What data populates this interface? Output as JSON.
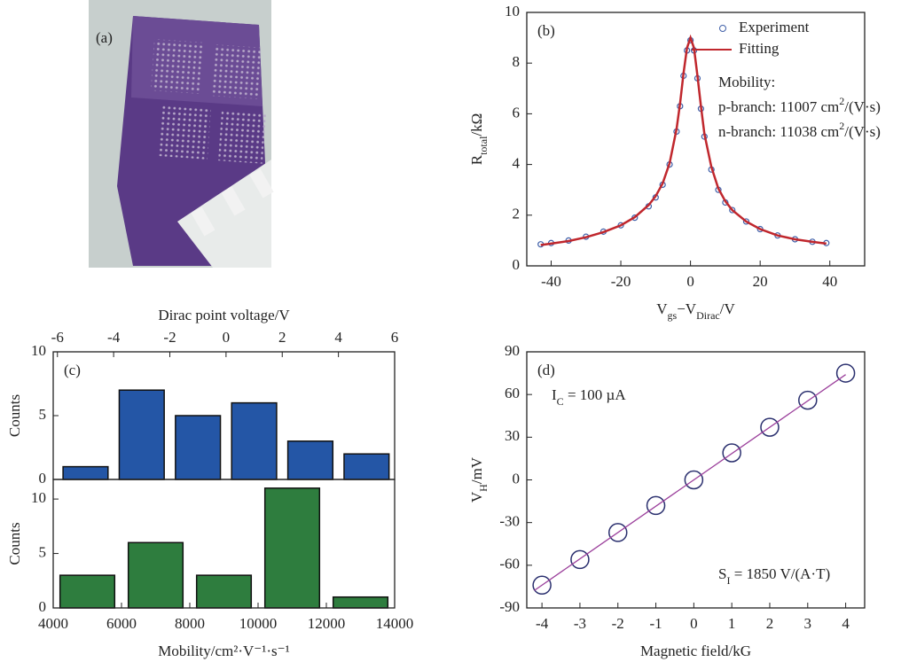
{
  "chart_data": [
    {
      "type": "image",
      "label": "(a)"
    },
    {
      "type": "line",
      "label": "(b)",
      "xlabel": [
        "V",
        "gs",
        "−V",
        "Dirac",
        "/V"
      ],
      "ylabel": [
        "R",
        "total",
        "/kΩ"
      ],
      "xlim": [
        -47,
        50
      ],
      "ylim": [
        0,
        10
      ],
      "xticks": [
        -40,
        -20,
        0,
        20,
        40
      ],
      "yticks": [
        0,
        2,
        4,
        6,
        8,
        10
      ],
      "x": [
        -43,
        -40,
        -35,
        -30,
        -25,
        -20,
        -16,
        -12,
        -10,
        -8,
        -6,
        -4,
        -3,
        -2,
        -1,
        0,
        1,
        2,
        3,
        4,
        6,
        8,
        10,
        12,
        16,
        20,
        25,
        30,
        35,
        39
      ],
      "series": [
        {
          "name": "Experiment",
          "color": "#3f5fa8",
          "marker": "circle",
          "values": [
            0.85,
            0.9,
            1.0,
            1.15,
            1.35,
            1.6,
            1.9,
            2.35,
            2.7,
            3.2,
            4.0,
            5.3,
            6.3,
            7.5,
            8.5,
            8.9,
            8.5,
            7.4,
            6.2,
            5.1,
            3.8,
            3.0,
            2.5,
            2.2,
            1.75,
            1.45,
            1.2,
            1.05,
            0.95,
            0.9
          ]
        },
        {
          "name": "Fitting",
          "color": "#c0272d",
          "values": [
            0.82,
            0.88,
            0.98,
            1.13,
            1.33,
            1.6,
            1.92,
            2.4,
            2.75,
            3.25,
            4.05,
            5.4,
            6.4,
            7.6,
            8.6,
            9.0,
            8.6,
            7.5,
            6.3,
            5.2,
            3.9,
            3.05,
            2.55,
            2.2,
            1.75,
            1.45,
            1.2,
            1.05,
            0.95,
            0.88
          ]
        }
      ],
      "legend": "upper right",
      "annotations": [
        [
          "Mobility:"
        ],
        [
          "p-branch: 11007 cm",
          "2",
          "/(V·s)"
        ],
        [
          "n-branch: 11038 cm",
          "2",
          "/(V·s)"
        ]
      ]
    },
    {
      "type": "bar",
      "label": "(c)",
      "xaxis": "top",
      "xlabel": "Dirac point voltage/V",
      "ylabel": "Counts",
      "xlim": [
        -6.15,
        6
      ],
      "xticks": [
        -6,
        -4,
        -2,
        0,
        2,
        4,
        6
      ],
      "ylim": [
        0,
        10
      ],
      "yticks": [
        0,
        5,
        10
      ],
      "x": [
        -5,
        -3,
        -1,
        1,
        3,
        5
      ],
      "values": [
        1,
        7,
        5,
        6,
        3,
        2
      ],
      "color": "#2456a6"
    },
    {
      "type": "bar",
      "xlabel": "Mobility/cm²·V⁻¹·s⁻¹",
      "ylabel": "Counts",
      "xlim": [
        4000,
        14000
      ],
      "xticks": [
        4000,
        6000,
        8000,
        10000,
        12000,
        14000
      ],
      "ylim": [
        0,
        11.8
      ],
      "yticks": [
        0,
        5,
        10
      ],
      "x": [
        5000,
        7000,
        9000,
        11000,
        13000
      ],
      "values": [
        3,
        6,
        3,
        11,
        1
      ],
      "color": "#2e7d3e"
    },
    {
      "type": "scatter",
      "label": "(d)",
      "xlabel": "Magnetic field/kG",
      "ylabel": [
        "V",
        "H",
        "/mV"
      ],
      "xlim": [
        -4.4,
        4.5
      ],
      "ylim": [
        -90,
        90
      ],
      "xticks": [
        -4,
        -3,
        -2,
        -1,
        0,
        1,
        2,
        3,
        4
      ],
      "yticks": [
        -90,
        -60,
        -30,
        0,
        30,
        60,
        90
      ],
      "x": [
        -4,
        -3,
        -2,
        -1,
        0,
        1,
        2,
        3,
        4
      ],
      "series": [
        {
          "color": "#2a2f6e",
          "marker": "circle",
          "values": [
            -74,
            -56,
            -37,
            -18,
            0,
            19,
            37,
            56,
            75
          ]
        },
        {
          "color": "#9b3f9b",
          "x": [
            -4.2,
            4
          ],
          "values": [
            -77.7,
            74
          ]
        }
      ],
      "annotations": [
        [
          "I",
          "C",
          " = 100 µA"
        ],
        [
          "S",
          "I",
          " = 1850 V/(A·T)"
        ]
      ]
    }
  ]
}
